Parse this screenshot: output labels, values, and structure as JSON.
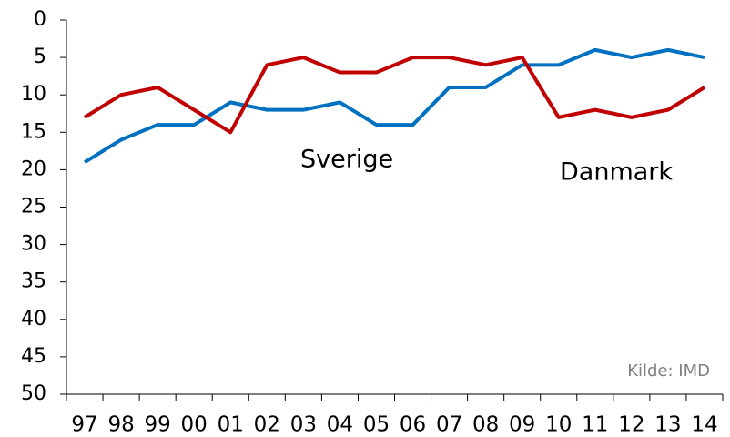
{
  "chart_data": {
    "type": "line",
    "categories": [
      "97",
      "98",
      "99",
      "00",
      "01",
      "02",
      "03",
      "04",
      "05",
      "06",
      "07",
      "08",
      "09",
      "10",
      "11",
      "12",
      "13",
      "14"
    ],
    "series": [
      {
        "name": "Sverige",
        "color": "#0070c0",
        "values": [
          19,
          16,
          14,
          14,
          11,
          12,
          12,
          11,
          14,
          14,
          9,
          9,
          6,
          6,
          4,
          5,
          4,
          5
        ]
      },
      {
        "name": "Danmark",
        "color": "#c00000",
        "values": [
          13,
          10,
          9,
          12,
          15,
          6,
          5,
          7,
          7,
          5,
          5,
          6,
          5,
          13,
          12,
          13,
          12,
          9
        ]
      }
    ],
    "ylim": [
      0,
      50
    ],
    "y_reversed": true,
    "yticks": [
      0,
      5,
      10,
      15,
      20,
      25,
      30,
      35,
      40,
      45,
      50
    ],
    "grid": false,
    "annotation": "Kilde: IMD"
  }
}
